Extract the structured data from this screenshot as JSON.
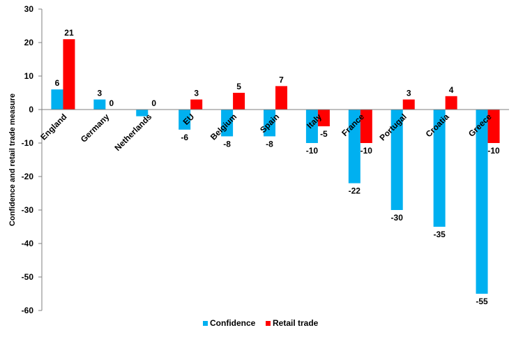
{
  "chart_data": {
    "type": "bar",
    "title": "",
    "xlabel": "",
    "ylabel": "Confidence and retail trade measure",
    "ylim": [
      -60,
      30
    ],
    "yticks": [
      30,
      20,
      10,
      0,
      -10,
      -20,
      -30,
      -40,
      -50,
      -60
    ],
    "grid": false,
    "legend_position": "bottom",
    "categories": [
      "England",
      "Germany",
      "Netherlands",
      "EU",
      "Belgium",
      "Spain",
      "Italy",
      "France",
      "Portugal",
      "Croatia",
      "Greece"
    ],
    "series": [
      {
        "name": "Confidence",
        "color": "#00B0F0",
        "values": [
          6,
          3,
          -2,
          -6,
          -8,
          -8,
          -10,
          -22,
          -30,
          -35,
          -55
        ],
        "labels": [
          "6",
          "3",
          "",
          "-6",
          "-8",
          "-8",
          "-10",
          "-22",
          "-30",
          "-35",
          "-55"
        ]
      },
      {
        "name": "Retail trade",
        "color": "#FF0000",
        "values": [
          21,
          0,
          0,
          3,
          5,
          7,
          -5,
          -10,
          3,
          4,
          -10
        ],
        "labels": [
          "21",
          "0",
          "0",
          "3",
          "5",
          "7",
          "-5",
          "-10",
          "3",
          "4",
          "-10"
        ]
      }
    ]
  }
}
